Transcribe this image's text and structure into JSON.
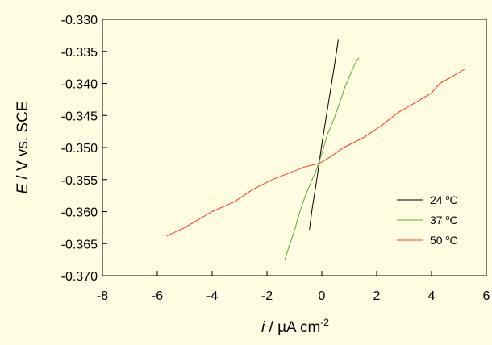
{
  "chart_data": {
    "type": "line",
    "background": "#fefde2",
    "xlabel": {
      "italic": "i",
      "rest": " / µA cm",
      "sup": "-2"
    },
    "ylabel": {
      "italic": "E",
      "rest": " / V vs. SCE"
    },
    "xlim": [
      -8,
      6
    ],
    "ylim": [
      -0.37,
      -0.33
    ],
    "xticks": [
      -8,
      -6,
      -4,
      -2,
      0,
      2,
      4,
      6
    ],
    "yticks": [
      -0.37,
      -0.365,
      -0.36,
      -0.355,
      -0.35,
      -0.345,
      -0.34,
      -0.335,
      -0.33
    ],
    "xtick_labels": [
      "-8",
      "-6",
      "-4",
      "-2",
      "0",
      "2",
      "4",
      "6"
    ],
    "ytick_labels": [
      "-0.370",
      "-0.365",
      "-0.360",
      "-0.355",
      "-0.350",
      "-0.345",
      "-0.340",
      "-0.335",
      "-0.330"
    ],
    "grid": false,
    "legend_position": "bottom-right",
    "series": [
      {
        "name": "24 °C",
        "label_parts": {
          "num": "24 ",
          "deg": "o",
          "unit": "C"
        },
        "color": "#000000",
        "points": [
          [
            -0.45,
            -0.3628
          ],
          [
            -0.35,
            -0.3595
          ],
          [
            -0.2,
            -0.3555
          ],
          [
            -0.1,
            -0.3525
          ],
          [
            0.0,
            -0.3495
          ],
          [
            0.15,
            -0.3455
          ],
          [
            0.3,
            -0.3415
          ],
          [
            0.45,
            -0.3375
          ],
          [
            0.6,
            -0.3332
          ]
        ]
      },
      {
        "name": "37 °C",
        "label_parts": {
          "num": "37 ",
          "deg": "o",
          "unit": "C"
        },
        "color": "#55aa33",
        "points": [
          [
            -1.35,
            -0.3675
          ],
          [
            -1.2,
            -0.3655
          ],
          [
            -1.0,
            -0.363
          ],
          [
            -0.8,
            -0.36
          ],
          [
            -0.6,
            -0.3575
          ],
          [
            -0.4,
            -0.3555
          ],
          [
            -0.2,
            -0.3535
          ],
          [
            0.0,
            -0.351
          ],
          [
            0.2,
            -0.348
          ],
          [
            0.45,
            -0.3455
          ],
          [
            0.65,
            -0.343
          ],
          [
            0.85,
            -0.3405
          ],
          [
            1.05,
            -0.3385
          ],
          [
            1.2,
            -0.337
          ],
          [
            1.35,
            -0.336
          ]
        ]
      },
      {
        "name": "50 °C",
        "label_parts": {
          "num": "50 ",
          "deg": "o",
          "unit": "C"
        },
        "color": "#ff3322",
        "points": [
          [
            -5.65,
            -0.3638
          ],
          [
            -5.0,
            -0.3625
          ],
          [
            -4.4,
            -0.361
          ],
          [
            -4.0,
            -0.36
          ],
          [
            -3.2,
            -0.3585
          ],
          [
            -2.5,
            -0.3565
          ],
          [
            -1.8,
            -0.355
          ],
          [
            -1.2,
            -0.354
          ],
          [
            -0.6,
            -0.353
          ],
          [
            -0.1,
            -0.3525
          ],
          [
            0.3,
            -0.3515
          ],
          [
            0.8,
            -0.35
          ],
          [
            1.5,
            -0.3485
          ],
          [
            2.2,
            -0.3465
          ],
          [
            2.8,
            -0.3445
          ],
          [
            3.4,
            -0.343
          ],
          [
            4.0,
            -0.3415
          ],
          [
            4.3,
            -0.34
          ],
          [
            4.6,
            -0.3393
          ],
          [
            5.2,
            -0.3378
          ]
        ]
      }
    ]
  }
}
